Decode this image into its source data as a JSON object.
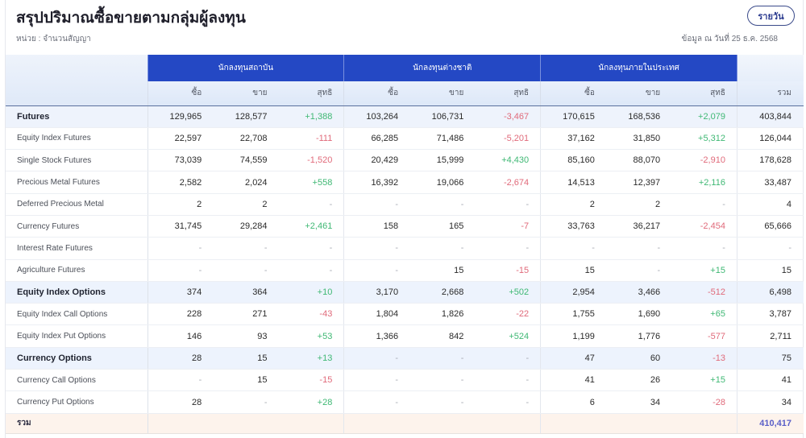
{
  "header": {
    "title": "สรุปปริมาณซื้อขายตามกลุ่มผู้ลงทุน",
    "unit_label": "หน่วย : จำนวนสัญญา",
    "period_button": "รายวัน",
    "as_of": "ข้อมูล ณ วันที่ 25 ธ.ค. 2568"
  },
  "table": {
    "groups": [
      "นักลงทุนสถาบัน",
      "นักลงทุนต่างชาติ",
      "นักลงทุนภายในประเทศ"
    ],
    "subheaders": {
      "buy": "ซื้อ",
      "sell": "ขาย",
      "net": "สุทธิ",
      "total": "รวม"
    },
    "colors": {
      "positive": "#3fb874",
      "negative": "#e06a7a",
      "group_header": "#2448c4",
      "grand_total": "#5a5fc8"
    },
    "rows": [
      {
        "label": "Futures",
        "type": "cat",
        "inst": [
          "129,965",
          "128,577",
          "+1,388"
        ],
        "foreign": [
          "103,264",
          "106,731",
          "-3,467"
        ],
        "local": [
          "170,615",
          "168,536",
          "+2,079"
        ],
        "total": "403,844"
      },
      {
        "label": "Equity Index Futures",
        "type": "sub",
        "inst": [
          "22,597",
          "22,708",
          "-111"
        ],
        "foreign": [
          "66,285",
          "71,486",
          "-5,201"
        ],
        "local": [
          "37,162",
          "31,850",
          "+5,312"
        ],
        "total": "126,044"
      },
      {
        "label": "Single Stock Futures",
        "type": "sub",
        "inst": [
          "73,039",
          "74,559",
          "-1,520"
        ],
        "foreign": [
          "20,429",
          "15,999",
          "+4,430"
        ],
        "local": [
          "85,160",
          "88,070",
          "-2,910"
        ],
        "total": "178,628"
      },
      {
        "label": "Precious Metal Futures",
        "type": "sub",
        "inst": [
          "2,582",
          "2,024",
          "+558"
        ],
        "foreign": [
          "16,392",
          "19,066",
          "-2,674"
        ],
        "local": [
          "14,513",
          "12,397",
          "+2,116"
        ],
        "total": "33,487"
      },
      {
        "label": "Deferred Precious Metal",
        "type": "sub",
        "inst": [
          "2",
          "2",
          "-"
        ],
        "foreign": [
          "-",
          "-",
          "-"
        ],
        "local": [
          "2",
          "2",
          "-"
        ],
        "total": "4"
      },
      {
        "label": "Currency Futures",
        "type": "sub",
        "inst": [
          "31,745",
          "29,284",
          "+2,461"
        ],
        "foreign": [
          "158",
          "165",
          "-7"
        ],
        "local": [
          "33,763",
          "36,217",
          "-2,454"
        ],
        "total": "65,666"
      },
      {
        "label": "Interest Rate Futures",
        "type": "sub",
        "inst": [
          "-",
          "-",
          "-"
        ],
        "foreign": [
          "-",
          "-",
          "-"
        ],
        "local": [
          "-",
          "-",
          "-"
        ],
        "total": "-"
      },
      {
        "label": "Agriculture Futures",
        "type": "sub",
        "inst": [
          "-",
          "-",
          "-"
        ],
        "foreign": [
          "-",
          "15",
          "-15"
        ],
        "local": [
          "15",
          "-",
          "+15"
        ],
        "total": "15"
      },
      {
        "label": "Equity Index Options",
        "type": "cat",
        "inst": [
          "374",
          "364",
          "+10"
        ],
        "foreign": [
          "3,170",
          "2,668",
          "+502"
        ],
        "local": [
          "2,954",
          "3,466",
          "-512"
        ],
        "total": "6,498"
      },
      {
        "label": "Equity Index Call Options",
        "type": "sub",
        "inst": [
          "228",
          "271",
          "-43"
        ],
        "foreign": [
          "1,804",
          "1,826",
          "-22"
        ],
        "local": [
          "1,755",
          "1,690",
          "+65"
        ],
        "total": "3,787"
      },
      {
        "label": "Equity Index Put Options",
        "type": "sub",
        "inst": [
          "146",
          "93",
          "+53"
        ],
        "foreign": [
          "1,366",
          "842",
          "+524"
        ],
        "local": [
          "1,199",
          "1,776",
          "-577"
        ],
        "total": "2,711"
      },
      {
        "label": "Currency Options",
        "type": "cat",
        "inst": [
          "28",
          "15",
          "+13"
        ],
        "foreign": [
          "-",
          "-",
          "-"
        ],
        "local": [
          "47",
          "60",
          "-13"
        ],
        "total": "75"
      },
      {
        "label": "Currency Call Options",
        "type": "sub",
        "inst": [
          "-",
          "15",
          "-15"
        ],
        "foreign": [
          "-",
          "-",
          "-"
        ],
        "local": [
          "41",
          "26",
          "+15"
        ],
        "total": "41"
      },
      {
        "label": "Currency Put Options",
        "type": "sub",
        "inst": [
          "28",
          "-",
          "+28"
        ],
        "foreign": [
          "-",
          "-",
          "-"
        ],
        "local": [
          "6",
          "34",
          "-28"
        ],
        "total": "34"
      }
    ],
    "summary": {
      "label": "รวม",
      "grand_total": "410,417"
    }
  }
}
